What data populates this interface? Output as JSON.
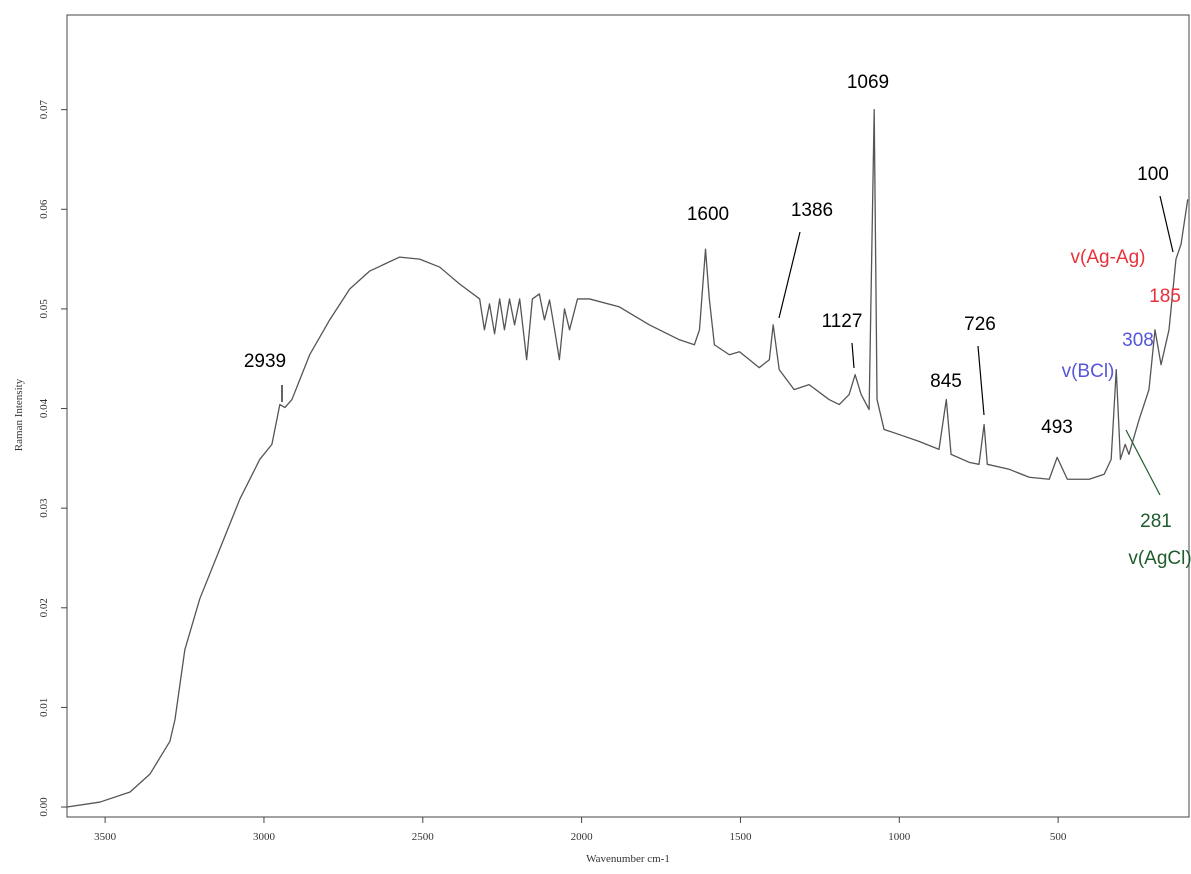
{
  "chart_data": {
    "type": "line",
    "x_label": "Wavenumber cm-1",
    "y_label": "Raman Intensity",
    "xlim": [
      3620,
      88
    ],
    "ylim": [
      -0.001,
      0.0795
    ],
    "xticks": [
      3500,
      3000,
      2500,
      2000,
      1500,
      1000,
      500
    ],
    "yticks": [
      {
        "value": 0,
        "label": "0.00"
      },
      0.01,
      0.02,
      0.03,
      0.04,
      0.05,
      0.06,
      0.07
    ],
    "x": [
      3620,
      3516,
      3422,
      3359,
      3296,
      3280,
      3249,
      3202,
      3139,
      3076,
      3013,
      2975,
      2950,
      2934,
      2912,
      2856,
      2793,
      2730,
      2667,
      2573,
      2510,
      2447,
      2384,
      2321,
      2306,
      2290,
      2274,
      2258,
      2243,
      2227,
      2211,
      2195,
      2173,
      2155,
      2133,
      2117,
      2101,
      2085,
      2070,
      2054,
      2038,
      2013,
      1975,
      1881,
      1787,
      1692,
      1645,
      1629,
      1610,
      1598,
      1582,
      1535,
      1503,
      1441,
      1409,
      1397,
      1378,
      1331,
      1284,
      1221,
      1189,
      1158,
      1139,
      1120,
      1095,
      1079,
      1070,
      1048,
      1001,
      938,
      875,
      852,
      837,
      780,
      749,
      733,
      723,
      654,
      591,
      528,
      503,
      471,
      402,
      355,
      333,
      317,
      304,
      289,
      277,
      245,
      214,
      195,
      176,
      151,
      129,
      113,
      92
    ],
    "series": [
      {
        "color": "#555555",
        "values": [
          0.0,
          0.0005,
          0.0015,
          0.0033,
          0.0066,
          0.0088,
          0.0158,
          0.0209,
          0.0259,
          0.0309,
          0.0349,
          0.0364,
          0.0404,
          0.0401,
          0.0409,
          0.0454,
          0.0489,
          0.052,
          0.0538,
          0.0552,
          0.055,
          0.0542,
          0.0525,
          0.051,
          0.0479,
          0.0505,
          0.0475,
          0.051,
          0.0479,
          0.051,
          0.0484,
          0.051,
          0.0449,
          0.051,
          0.0515,
          0.0489,
          0.0509,
          0.0479,
          0.0449,
          0.05,
          0.0479,
          0.051,
          0.051,
          0.0502,
          0.0484,
          0.0469,
          0.0464,
          0.0479,
          0.056,
          0.051,
          0.0464,
          0.0454,
          0.0457,
          0.0441,
          0.0449,
          0.0484,
          0.0439,
          0.0419,
          0.0424,
          0.0409,
          0.0404,
          0.0414,
          0.0434,
          0.0414,
          0.0399,
          0.07,
          0.0409,
          0.0379,
          0.0374,
          0.0367,
          0.0359,
          0.0409,
          0.0354,
          0.0346,
          0.0344,
          0.0384,
          0.0344,
          0.0339,
          0.0331,
          0.0329,
          0.0351,
          0.0329,
          0.0329,
          0.0334,
          0.0349,
          0.0439,
          0.0349,
          0.0364,
          0.0354,
          0.0389,
          0.0419,
          0.0479,
          0.0444,
          0.0479,
          0.055,
          0.0565,
          0.061
        ]
      }
    ],
    "annotations": [
      {
        "text": "2939",
        "color": "#000000"
      },
      {
        "text": "1600",
        "color": "#000000"
      },
      {
        "text": "1386",
        "color": "#000000"
      },
      {
        "text": "1069",
        "color": "#000000"
      },
      {
        "text": "1127",
        "color": "#000000"
      },
      {
        "text": "726",
        "color": "#000000"
      },
      {
        "text": "845",
        "color": "#000000"
      },
      {
        "text": "493",
        "color": "#000000"
      },
      {
        "text": "308",
        "color": "#5555dd"
      },
      {
        "text": "v(BCl)",
        "color": "#5555dd"
      },
      {
        "text": "100",
        "color": "#000000"
      },
      {
        "text": "v(Ag-Ag)",
        "color": "#e8303a"
      },
      {
        "text": "185",
        "color": "#e8303a"
      },
      {
        "text": "281",
        "color": "#1f5c2c"
      },
      {
        "text": "v(AgCl)",
        "color": "#1f5c2c"
      }
    ]
  }
}
